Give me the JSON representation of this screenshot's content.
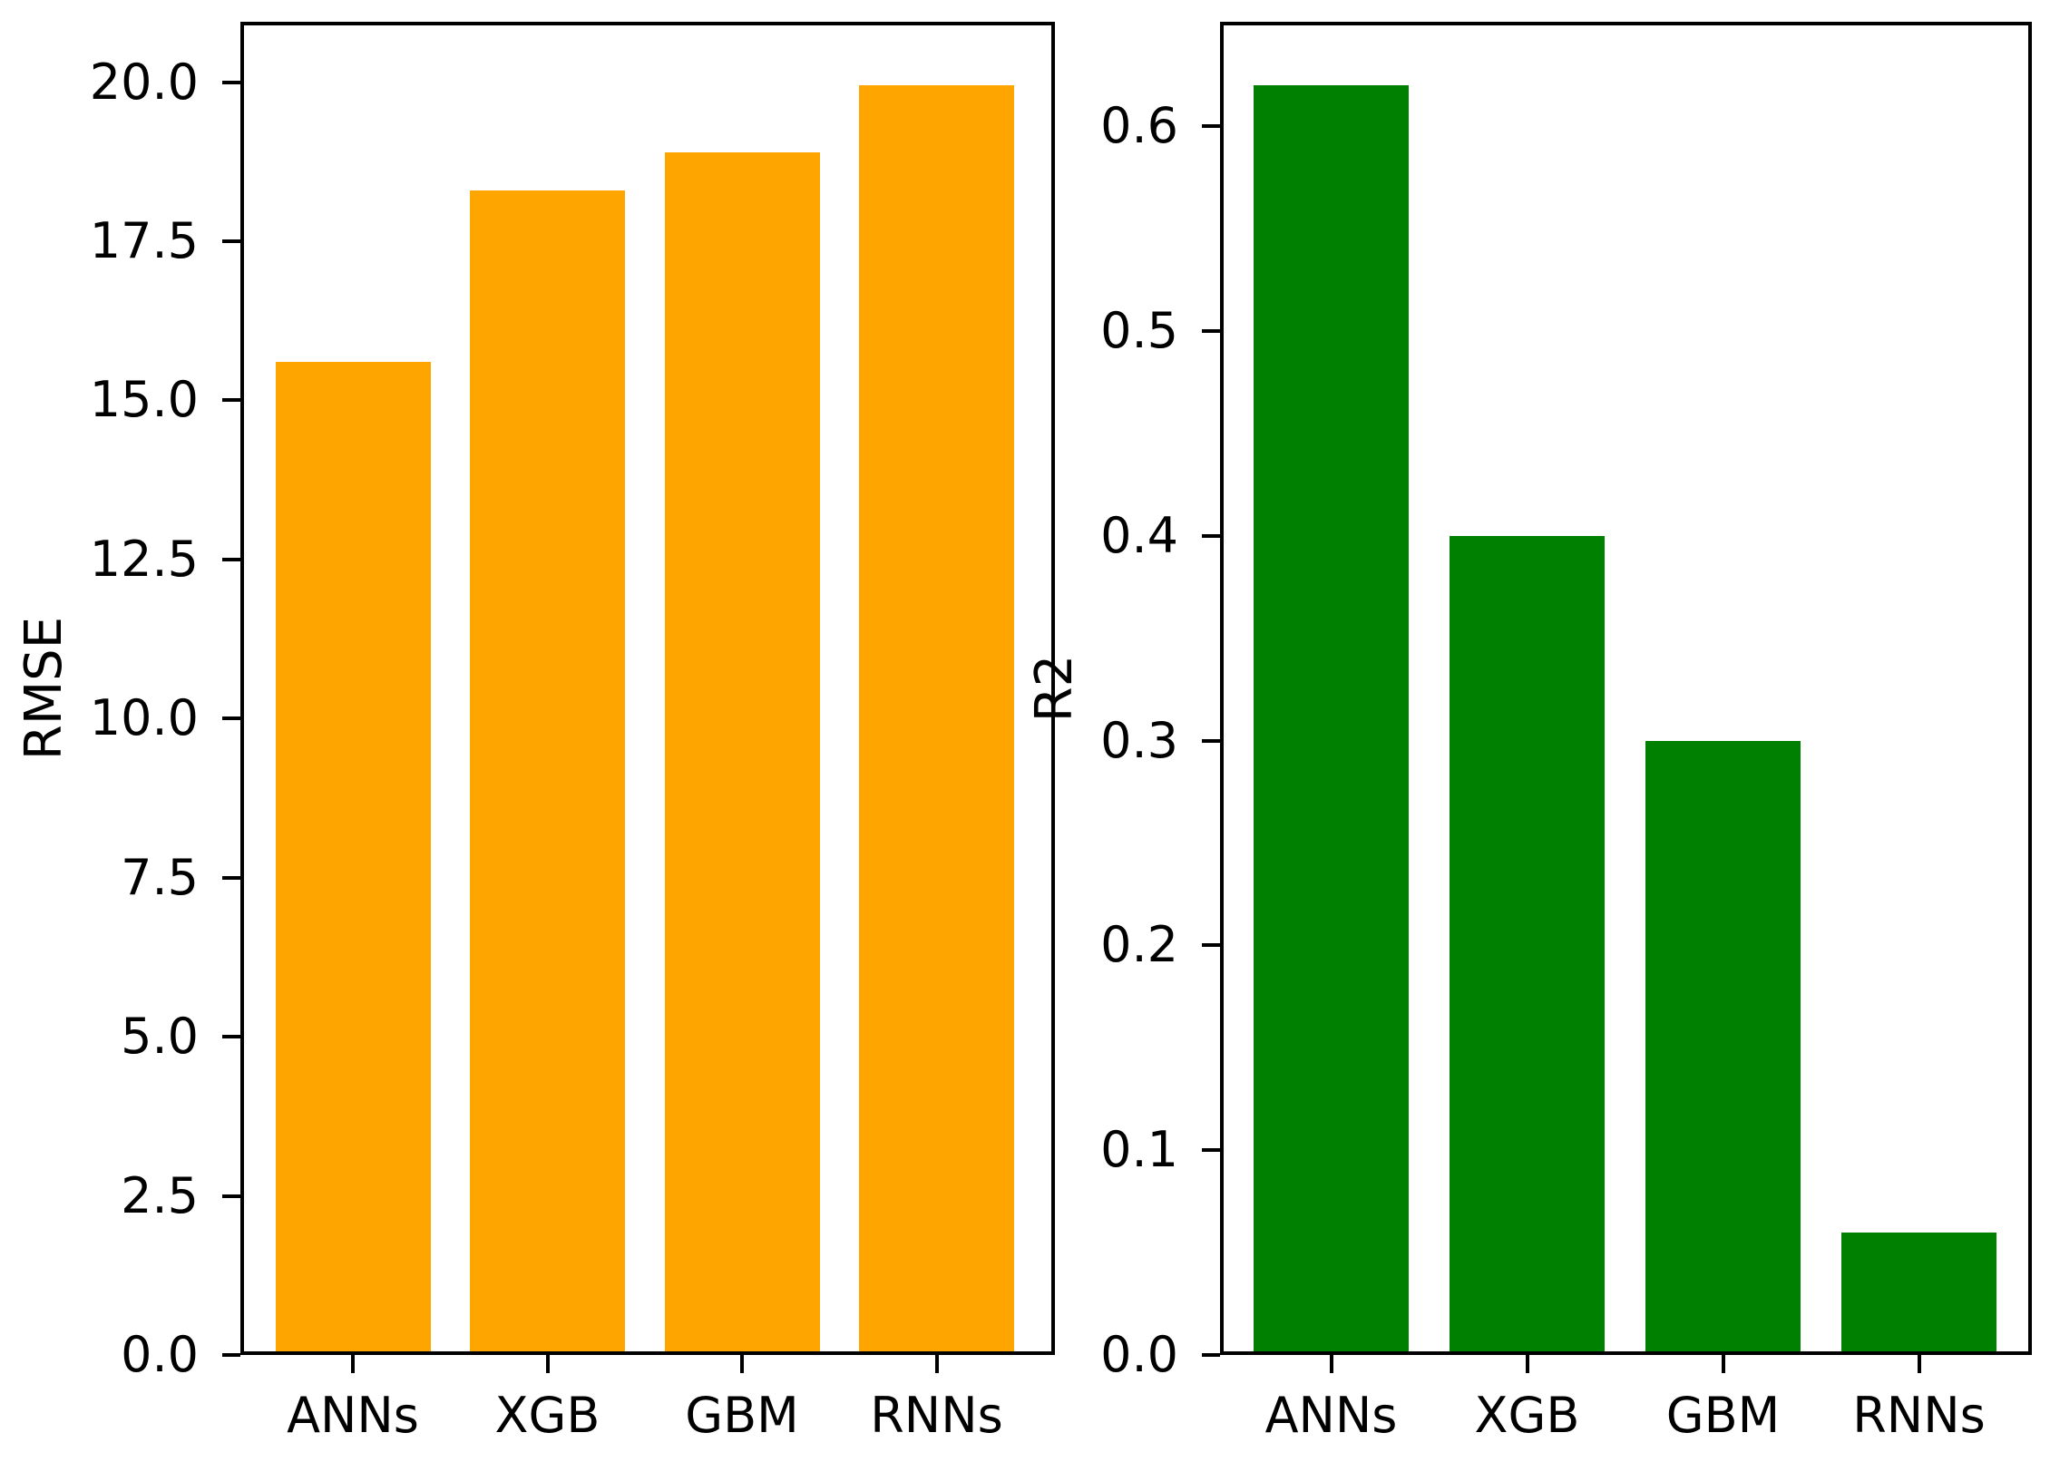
{
  "figure": {
    "background": "#ffffff",
    "text_color": "#000000"
  },
  "chart_data": [
    {
      "type": "bar",
      "title": "",
      "xlabel": "",
      "ylabel": "RMSE",
      "categories": [
        "ANNs",
        "XGB",
        "GBM",
        "RNNs"
      ],
      "values": [
        15.6,
        18.3,
        18.9,
        19.95
      ],
      "bar_color": "#FFA500",
      "ylim": [
        0,
        20.95
      ],
      "yticks": [
        "0.0",
        "2.5",
        "5.0",
        "7.5",
        "10.0",
        "12.5",
        "15.0",
        "17.5",
        "20.0"
      ],
      "grid": false,
      "legend": null
    },
    {
      "type": "bar",
      "title": "",
      "xlabel": "",
      "ylabel": "R2",
      "categories": [
        "ANNs",
        "XGB",
        "GBM",
        "RNNs"
      ],
      "values": [
        0.62,
        0.4,
        0.3,
        0.06
      ],
      "bar_color": "#008000",
      "ylim": [
        0,
        0.651
      ],
      "yticks": [
        "0.0",
        "0.1",
        "0.2",
        "0.3",
        "0.4",
        "0.5",
        "0.6"
      ],
      "grid": false,
      "legend": null
    }
  ]
}
